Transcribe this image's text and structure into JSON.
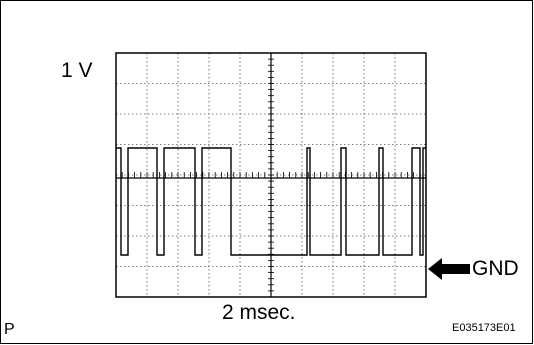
{
  "scope": {
    "vertical_scale_label": "1 V",
    "time_scale_label": "2 msec.",
    "ground_marker_label": "GND",
    "ground_marker_icon": "left-arrow-icon",
    "grid": {
      "divisions_x": 10,
      "divisions_y": 8
    }
  },
  "corner_label": "P",
  "figure_id": "E035173E01"
}
